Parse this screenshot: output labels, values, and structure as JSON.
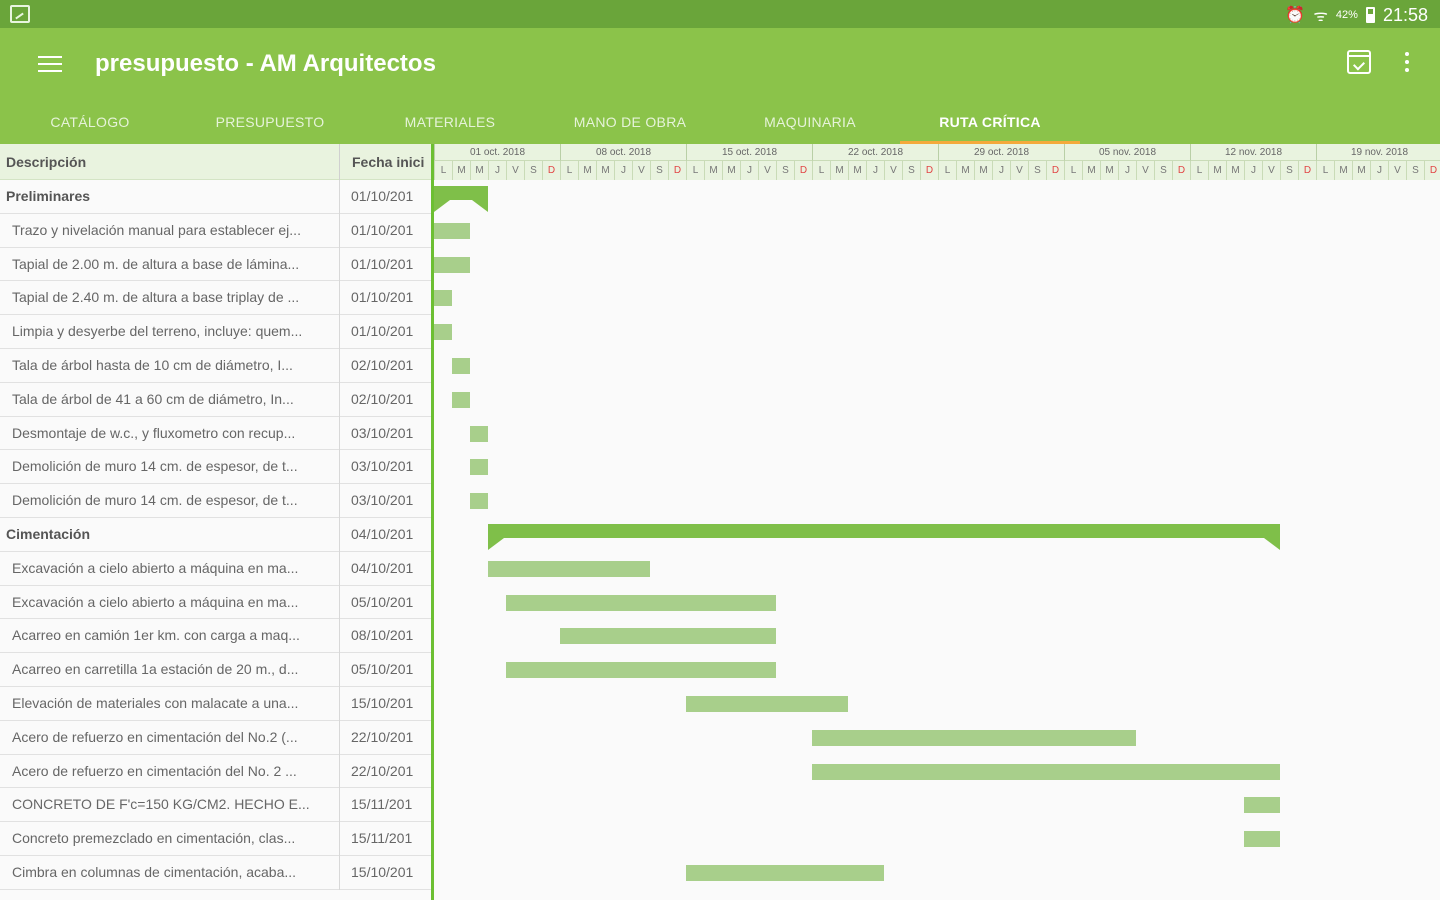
{
  "status_bar": {
    "battery": "42%",
    "time": "21:58",
    "icons": [
      "app-notification-icon",
      "alarm-icon",
      "wifi-icon",
      "battery-icon"
    ]
  },
  "app_bar": {
    "title": "presupuesto - AM Arquitectos",
    "icons": [
      "menu-icon",
      "calendar-icon",
      "more-vert-icon"
    ]
  },
  "tabs": [
    "CATÁLOGO",
    "PRESUPUESTO",
    "MATERIALES",
    "MANO DE OBRA",
    "MAQUINARIA",
    "RUTA CRÍTICA"
  ],
  "active_tab": "RUTA CRÍTICA",
  "accent_colors": {
    "toolbar": "#8bc34a",
    "status": "#6aa53a",
    "bar": "#a8cf8b",
    "summary": "#7fbf49",
    "tab_indicator": "#f4a93b"
  },
  "table": {
    "columns": [
      "Descripción",
      "Fecha inici"
    ],
    "rows": [
      {
        "desc": "Preliminares",
        "date": "01/10/201",
        "group": true
      },
      {
        "desc": "Trazo y nivelación manual para establecer ej...",
        "date": "01/10/201"
      },
      {
        "desc": "Tapial de 2.00 m. de altura a base de lámina...",
        "date": "01/10/201"
      },
      {
        "desc": "Tapial de 2.40 m. de altura a base triplay de ...",
        "date": "01/10/201"
      },
      {
        "desc": "Limpia y desyerbe del terreno, incluye: quem...",
        "date": "01/10/201"
      },
      {
        "desc": "Tala de árbol hasta de 10 cm de diámetro, I...",
        "date": "02/10/201"
      },
      {
        "desc": "Tala de árbol de 41 a 60 cm de diámetro, In...",
        "date": "02/10/201"
      },
      {
        "desc": "Desmontaje de w.c., y fluxometro con recup...",
        "date": "03/10/201"
      },
      {
        "desc": "Demolición de muro 14 cm. de espesor, de t...",
        "date": "03/10/201"
      },
      {
        "desc": "Demolición de muro 14 cm. de espesor, de t...",
        "date": "03/10/201"
      },
      {
        "desc": "Cimentación",
        "date": "04/10/201",
        "group": true
      },
      {
        "desc": "Excavación a cielo abierto a máquina en ma...",
        "date": "04/10/201"
      },
      {
        "desc": "Excavación a cielo abierto a máquina en ma...",
        "date": "05/10/201"
      },
      {
        "desc": "Acarreo en camión 1er km. con carga a maq...",
        "date": "08/10/201"
      },
      {
        "desc": "Acarreo en carretilla 1a estación de 20 m., d...",
        "date": "05/10/201"
      },
      {
        "desc": "Elevación de materiales con malacate a una...",
        "date": "15/10/201"
      },
      {
        "desc": "Acero de refuerzo en cimentación del No.2 (...",
        "date": "22/10/201"
      },
      {
        "desc": "Acero de refuerzo en cimentación del No. 2 ...",
        "date": "22/10/201"
      },
      {
        "desc": "CONCRETO DE F'c=150 KG/CM2. HECHO E...",
        "date": "15/11/201"
      },
      {
        "desc": "Concreto premezclado en cimentación, clas...",
        "date": "15/11/201"
      },
      {
        "desc": "Cimbra en columnas de cimentación, acaba...",
        "date": "15/10/201"
      }
    ]
  },
  "gantt": {
    "weeks": [
      "01 oct. 2018",
      "08 oct. 2018",
      "15 oct. 2018",
      "22 oct. 2018",
      "29 oct. 2018",
      "05 nov. 2018",
      "12 nov. 2018",
      "19 nov. 2018"
    ],
    "day_letters": [
      "L",
      "M",
      "M",
      "J",
      "V",
      "S",
      "D"
    ],
    "tasks": [
      {
        "start": 0,
        "days": 3,
        "summary": true
      },
      {
        "start": 0,
        "days": 2
      },
      {
        "start": 0,
        "days": 2
      },
      {
        "start": 0,
        "days": 1
      },
      {
        "start": 0,
        "days": 1
      },
      {
        "start": 1,
        "days": 1
      },
      {
        "start": 1,
        "days": 1
      },
      {
        "start": 2,
        "days": 1
      },
      {
        "start": 2,
        "days": 1
      },
      {
        "start": 2,
        "days": 1
      },
      {
        "start": 3,
        "days": 44,
        "summary": true
      },
      {
        "start": 3,
        "days": 9
      },
      {
        "start": 4,
        "days": 15
      },
      {
        "start": 7,
        "days": 12
      },
      {
        "start": 4,
        "days": 15
      },
      {
        "start": 14,
        "days": 9
      },
      {
        "start": 21,
        "days": 18
      },
      {
        "start": 21,
        "days": 26
      },
      {
        "start": 45,
        "days": 2
      },
      {
        "start": 45,
        "days": 2
      },
      {
        "start": 14,
        "days": 11
      }
    ]
  }
}
